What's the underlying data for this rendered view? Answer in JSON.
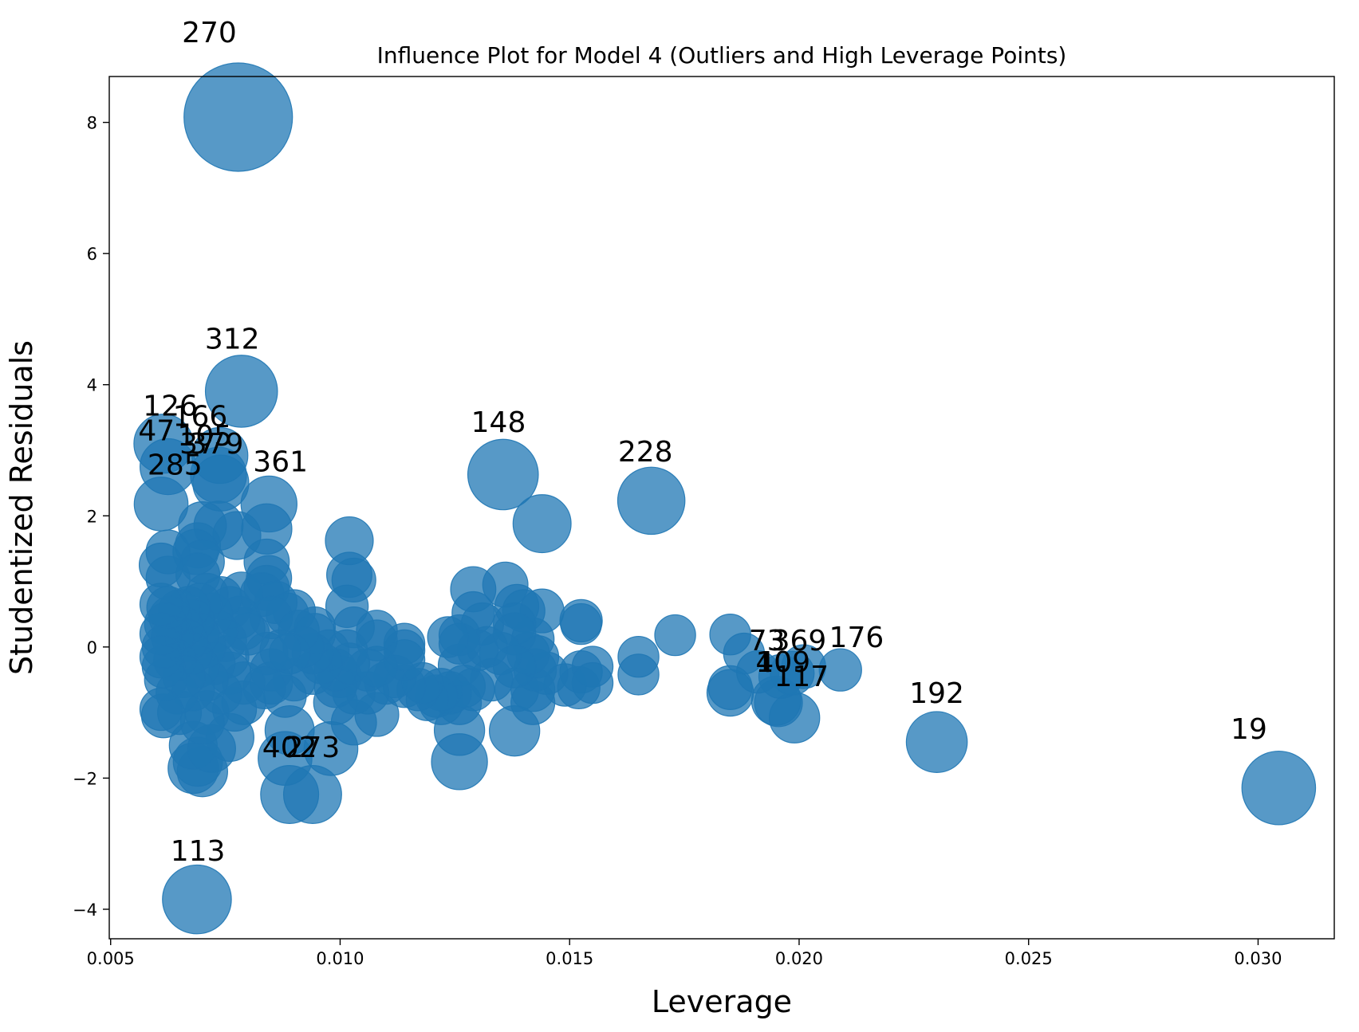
{
  "chart_data": {
    "type": "scatter",
    "title": "Influence Plot for Model 4 (Outliers and High Leverage Points)",
    "xlabel": "Leverage",
    "ylabel": "Studentized Residuals",
    "xlim": [
      0.00497,
      0.03166
    ],
    "ylim": [
      -4.45,
      8.7
    ],
    "xticks": [
      0.005,
      0.01,
      0.015,
      0.02,
      0.025,
      0.03
    ],
    "xtick_labels": [
      "0.005",
      "0.010",
      "0.015",
      "0.020",
      "0.025",
      "0.030"
    ],
    "yticks": [
      -4,
      -2,
      0,
      2,
      4,
      6,
      8
    ],
    "ytick_labels": [
      "−4",
      "−2",
      "0",
      "2",
      "4",
      "6",
      "8"
    ],
    "grid": false,
    "marker_color": "#1f77b4",
    "marker_alpha": 0.75,
    "points": [
      {
        "x": 0.00778,
        "y": 8.08,
        "s": 1.0
      },
      {
        "x": 0.00785,
        "y": 3.9,
        "s": 0.4
      },
      {
        "x": 0.00688,
        "y": -3.85,
        "s": 0.36
      },
      {
        "x": 0.03045,
        "y": -2.15,
        "s": 0.42
      },
      {
        "x": 0.01355,
        "y": 2.63,
        "s": 0.38
      },
      {
        "x": 0.01678,
        "y": 2.23,
        "s": 0.34
      },
      {
        "x": 0.023,
        "y": -1.45,
        "s": 0.27
      },
      {
        "x": 0.00615,
        "y": 3.1,
        "s": 0.25
      },
      {
        "x": 0.00625,
        "y": 2.75,
        "s": 0.22
      },
      {
        "x": 0.00738,
        "y": 2.92,
        "s": 0.22
      },
      {
        "x": 0.00735,
        "y": 2.62,
        "s": 0.22
      },
      {
        "x": 0.0074,
        "y": 2.5,
        "s": 0.22
      },
      {
        "x": 0.0061,
        "y": 2.18,
        "s": 0.2
      },
      {
        "x": 0.00845,
        "y": 2.18,
        "s": 0.22
      },
      {
        "x": 0.0144,
        "y": 1.88,
        "s": 0.24
      },
      {
        "x": 0.0089,
        "y": -2.25,
        "s": 0.24
      },
      {
        "x": 0.0094,
        "y": -2.25,
        "s": 0.24
      },
      {
        "x": 0.0088,
        "y": -1.7,
        "s": 0.2
      },
      {
        "x": 0.0098,
        "y": -1.55,
        "s": 0.2
      },
      {
        "x": 0.007,
        "y": -1.9,
        "s": 0.17
      },
      {
        "x": 0.0068,
        "y": -1.85,
        "s": 0.17
      },
      {
        "x": 0.0069,
        "y": -1.75,
        "s": 0.16
      },
      {
        "x": 0.0068,
        "y": -1.5,
        "s": 0.15
      },
      {
        "x": 0.0072,
        "y": -1.55,
        "s": 0.15
      },
      {
        "x": 0.0076,
        "y": -1.38,
        "s": 0.15
      },
      {
        "x": 0.0089,
        "y": -1.27,
        "s": 0.16
      },
      {
        "x": 0.0126,
        "y": -1.75,
        "s": 0.22
      },
      {
        "x": 0.0126,
        "y": -1.27,
        "s": 0.17
      },
      {
        "x": 0.0138,
        "y": -1.28,
        "s": 0.17
      },
      {
        "x": 0.0199,
        "y": -1.08,
        "s": 0.17
      },
      {
        "x": 0.0195,
        "y": -0.82,
        "s": 0.16
      },
      {
        "x": 0.01955,
        "y": -0.85,
        "s": 0.15
      },
      {
        "x": 0.0185,
        "y": -0.7,
        "s": 0.14
      },
      {
        "x": 0.0185,
        "y": -0.62,
        "s": 0.12
      },
      {
        "x": 0.0196,
        "y": -0.45,
        "s": 0.12
      },
      {
        "x": 0.01985,
        "y": -0.4,
        "s": 0.12
      },
      {
        "x": 0.0201,
        "y": -0.3,
        "s": 0.12
      },
      {
        "x": 0.0209,
        "y": -0.35,
        "s": 0.11
      },
      {
        "x": 0.0188,
        "y": -0.1,
        "s": 0.1
      },
      {
        "x": 0.0191,
        "y": -0.38,
        "s": 0.11
      },
      {
        "x": 0.0185,
        "y": 0.19,
        "s": 0.1
      },
      {
        "x": 0.0173,
        "y": 0.18,
        "s": 0.1
      },
      {
        "x": 0.0165,
        "y": -0.15,
        "s": 0.1
      },
      {
        "x": 0.0165,
        "y": -0.42,
        "s": 0.1
      },
      {
        "x": 0.01525,
        "y": 0.4,
        "s": 0.11
      },
      {
        "x": 0.01525,
        "y": 0.35,
        "s": 0.1
      },
      {
        "x": 0.0155,
        "y": -0.3,
        "s": 0.1
      },
      {
        "x": 0.0155,
        "y": -0.55,
        "s": 0.1
      },
      {
        "x": 0.0152,
        "y": -0.62,
        "s": 0.11
      },
      {
        "x": 0.01525,
        "y": -0.38,
        "s": 0.11
      },
      {
        "x": 0.0149,
        "y": -0.58,
        "s": 0.11
      },
      {
        "x": 0.0144,
        "y": 0.55,
        "s": 0.12
      },
      {
        "x": 0.0145,
        "y": -0.4,
        "s": 0.11
      },
      {
        "x": 0.0142,
        "y": -0.85,
        "s": 0.12
      },
      {
        "x": 0.0142,
        "y": -0.65,
        "s": 0.12
      },
      {
        "x": 0.01425,
        "y": -0.35,
        "s": 0.11
      },
      {
        "x": 0.0142,
        "y": 0.12,
        "s": 0.11
      },
      {
        "x": 0.0143,
        "y": -0.15,
        "s": 0.11
      },
      {
        "x": 0.0141,
        "y": -0.1,
        "s": 0.11
      },
      {
        "x": 0.014,
        "y": 0.55,
        "s": 0.11
      },
      {
        "x": 0.01385,
        "y": 0.62,
        "s": 0.12
      },
      {
        "x": 0.0138,
        "y": 0.35,
        "s": 0.11
      },
      {
        "x": 0.0138,
        "y": 0.2,
        "s": 0.11
      },
      {
        "x": 0.0138,
        "y": -0.3,
        "s": 0.11
      },
      {
        "x": 0.01385,
        "y": -0.65,
        "s": 0.12
      },
      {
        "x": 0.0136,
        "y": 0.95,
        "s": 0.13
      },
      {
        "x": 0.0135,
        "y": -0.1,
        "s": 0.11
      },
      {
        "x": 0.0133,
        "y": -0.5,
        "s": 0.11
      },
      {
        "x": 0.0132,
        "y": 0.0,
        "s": 0.1
      },
      {
        "x": 0.0131,
        "y": 0.35,
        "s": 0.11
      },
      {
        "x": 0.013,
        "y": -0.05,
        "s": 0.1
      },
      {
        "x": 0.0129,
        "y": 0.52,
        "s": 0.11
      },
      {
        "x": 0.0129,
        "y": 0.88,
        "s": 0.13
      },
      {
        "x": 0.0129,
        "y": -0.65,
        "s": 0.11
      },
      {
        "x": 0.0127,
        "y": -0.6,
        "s": 0.11
      },
      {
        "x": 0.0126,
        "y": 0.18,
        "s": 0.1
      },
      {
        "x": 0.0126,
        "y": -0.28,
        "s": 0.11
      },
      {
        "x": 0.0126,
        "y": -0.85,
        "s": 0.12
      },
      {
        "x": 0.0126,
        "y": 0.05,
        "s": 0.1
      },
      {
        "x": 0.0124,
        "y": -0.7,
        "s": 0.11
      },
      {
        "x": 0.01235,
        "y": 0.15,
        "s": 0.1
      },
      {
        "x": 0.0122,
        "y": -0.65,
        "s": 0.11
      },
      {
        "x": 0.0122,
        "y": -0.85,
        "s": 0.12
      },
      {
        "x": 0.0121,
        "y": -0.75,
        "s": 0.11
      },
      {
        "x": 0.0119,
        "y": -0.8,
        "s": 0.11
      },
      {
        "x": 0.0117,
        "y": -0.65,
        "s": 0.11
      },
      {
        "x": 0.0118,
        "y": -0.55,
        "s": 0.1
      },
      {
        "x": 0.0114,
        "y": -0.6,
        "s": 0.11
      },
      {
        "x": 0.0114,
        "y": -0.2,
        "s": 0.1
      },
      {
        "x": 0.0114,
        "y": 0.05,
        "s": 0.1
      },
      {
        "x": 0.0114,
        "y": -0.05,
        "s": 0.1
      },
      {
        "x": 0.0112,
        "y": -0.45,
        "s": 0.11
      },
      {
        "x": 0.011,
        "y": -0.55,
        "s": 0.11
      },
      {
        "x": 0.0108,
        "y": -1.03,
        "s": 0.12
      },
      {
        "x": 0.0108,
        "y": -0.3,
        "s": 0.1
      },
      {
        "x": 0.0108,
        "y": 0.1,
        "s": 0.1
      },
      {
        "x": 0.0108,
        "y": 0.25,
        "s": 0.1
      },
      {
        "x": 0.0106,
        "y": -0.7,
        "s": 0.11
      },
      {
        "x": 0.0106,
        "y": -0.35,
        "s": 0.11
      },
      {
        "x": 0.0103,
        "y": -1.15,
        "s": 0.13
      },
      {
        "x": 0.0103,
        "y": -0.7,
        "s": 0.11
      },
      {
        "x": 0.0103,
        "y": 0.3,
        "s": 0.1
      },
      {
        "x": 0.0103,
        "y": 1.02,
        "s": 0.12
      },
      {
        "x": 0.0102,
        "y": 1.1,
        "s": 0.13
      },
      {
        "x": 0.0102,
        "y": 1.62,
        "s": 0.15
      },
      {
        "x": 0.01015,
        "y": 0.62,
        "s": 0.11
      },
      {
        "x": 0.01015,
        "y": -0.05,
        "s": 0.1
      },
      {
        "x": 0.0102,
        "y": -0.25,
        "s": 0.1
      },
      {
        "x": 0.01,
        "y": -0.45,
        "s": 0.11
      },
      {
        "x": 0.0099,
        "y": -0.6,
        "s": 0.11
      },
      {
        "x": 0.0099,
        "y": -0.35,
        "s": 0.11
      },
      {
        "x": 0.0099,
        "y": -0.85,
        "s": 0.12
      },
      {
        "x": 0.00975,
        "y": -0.05,
        "s": 0.1
      },
      {
        "x": 0.0096,
        "y": -0.25,
        "s": 0.1
      },
      {
        "x": 0.00945,
        "y": 0.3,
        "s": 0.1
      },
      {
        "x": 0.00945,
        "y": 0.2,
        "s": 0.1
      },
      {
        "x": 0.0094,
        "y": -0.4,
        "s": 0.11
      },
      {
        "x": 0.0094,
        "y": -0.1,
        "s": 0.1
      },
      {
        "x": 0.0092,
        "y": 0.0,
        "s": 0.1
      },
      {
        "x": 0.0091,
        "y": 0.25,
        "s": 0.1
      },
      {
        "x": 0.009,
        "y": 0.55,
        "s": 0.11
      },
      {
        "x": 0.009,
        "y": -0.5,
        "s": 0.11
      },
      {
        "x": 0.0089,
        "y": -0.1,
        "s": 0.1
      },
      {
        "x": 0.00885,
        "y": 0.5,
        "s": 0.11
      },
      {
        "x": 0.0088,
        "y": -0.75,
        "s": 0.11
      },
      {
        "x": 0.0087,
        "y": -0.05,
        "s": 0.1
      },
      {
        "x": 0.0086,
        "y": 0.68,
        "s": 0.11
      },
      {
        "x": 0.0085,
        "y": 0.45,
        "s": 0.11
      },
      {
        "x": 0.0085,
        "y": -0.35,
        "s": 0.11
      },
      {
        "x": 0.0085,
        "y": -0.55,
        "s": 0.11
      },
      {
        "x": 0.00845,
        "y": 1.05,
        "s": 0.13
      },
      {
        "x": 0.0084,
        "y": 1.3,
        "s": 0.13
      },
      {
        "x": 0.0084,
        "y": 0.9,
        "s": 0.13
      },
      {
        "x": 0.0084,
        "y": 1.8,
        "s": 0.17
      },
      {
        "x": 0.0084,
        "y": -0.1,
        "s": 0.11
      },
      {
        "x": 0.00835,
        "y": -0.62,
        "s": 0.11
      },
      {
        "x": 0.0083,
        "y": 0.8,
        "s": 0.12
      },
      {
        "x": 0.008,
        "y": 0.2,
        "s": 0.11
      },
      {
        "x": 0.0079,
        "y": 0.28,
        "s": 0.11
      },
      {
        "x": 0.0079,
        "y": -0.55,
        "s": 0.11
      },
      {
        "x": 0.0079,
        "y": -0.85,
        "s": 0.12
      },
      {
        "x": 0.00785,
        "y": 0.82,
        "s": 0.11
      },
      {
        "x": 0.0078,
        "y": 0.45,
        "s": 0.11
      },
      {
        "x": 0.00775,
        "y": 1.7,
        "s": 0.15
      },
      {
        "x": 0.0077,
        "y": -0.95,
        "s": 0.12
      },
      {
        "x": 0.0076,
        "y": 0.6,
        "s": 0.11
      },
      {
        "x": 0.0076,
        "y": -0.4,
        "s": 0.11
      },
      {
        "x": 0.00755,
        "y": -0.15,
        "s": 0.11
      },
      {
        "x": 0.0075,
        "y": 0.1,
        "s": 0.11
      },
      {
        "x": 0.0074,
        "y": 0.75,
        "s": 0.11
      },
      {
        "x": 0.0074,
        "y": -0.7,
        "s": 0.11
      },
      {
        "x": 0.00735,
        "y": 1.85,
        "s": 0.16
      },
      {
        "x": 0.0073,
        "y": 0.25,
        "s": 0.11
      },
      {
        "x": 0.00725,
        "y": -0.25,
        "s": 0.11
      },
      {
        "x": 0.0072,
        "y": 0.5,
        "s": 0.11
      },
      {
        "x": 0.0071,
        "y": 0.8,
        "s": 0.11
      },
      {
        "x": 0.0071,
        "y": -1.0,
        "s": 0.12
      },
      {
        "x": 0.0071,
        "y": -0.5,
        "s": 0.11
      },
      {
        "x": 0.00705,
        "y": 0.0,
        "s": 0.11
      },
      {
        "x": 0.007,
        "y": 1.85,
        "s": 0.15
      },
      {
        "x": 0.007,
        "y": -1.15,
        "s": 0.12
      },
      {
        "x": 0.007,
        "y": 1.3,
        "s": 0.12
      },
      {
        "x": 0.00695,
        "y": 0.65,
        "s": 0.11
      },
      {
        "x": 0.0069,
        "y": 1.55,
        "s": 0.13
      },
      {
        "x": 0.0069,
        "y": 1.1,
        "s": 0.12
      },
      {
        "x": 0.0069,
        "y": -0.3,
        "s": 0.11
      },
      {
        "x": 0.0069,
        "y": 0.2,
        "s": 0.11
      },
      {
        "x": 0.00685,
        "y": 1.45,
        "s": 0.13
      },
      {
        "x": 0.0068,
        "y": 0.4,
        "s": 0.11
      },
      {
        "x": 0.0068,
        "y": -0.65,
        "s": 0.11
      },
      {
        "x": 0.00675,
        "y": -0.1,
        "s": 0.11
      },
      {
        "x": 0.0067,
        "y": 0.6,
        "s": 0.11
      },
      {
        "x": 0.00665,
        "y": 0.1,
        "s": 0.11
      },
      {
        "x": 0.0066,
        "y": -0.45,
        "s": 0.11
      },
      {
        "x": 0.00655,
        "y": 0.3,
        "s": 0.11
      },
      {
        "x": 0.0065,
        "y": -1.0,
        "s": 0.12
      },
      {
        "x": 0.0065,
        "y": 0.55,
        "s": 0.11
      },
      {
        "x": 0.00645,
        "y": -0.7,
        "s": 0.11
      },
      {
        "x": 0.0064,
        "y": -0.2,
        "s": 0.11
      },
      {
        "x": 0.00635,
        "y": 0.15,
        "s": 0.11
      },
      {
        "x": 0.0063,
        "y": 0.45,
        "s": 0.11
      },
      {
        "x": 0.00625,
        "y": 1.05,
        "s": 0.12
      },
      {
        "x": 0.00625,
        "y": 1.45,
        "s": 0.12
      },
      {
        "x": 0.00625,
        "y": 0.6,
        "s": 0.11
      },
      {
        "x": 0.0062,
        "y": 0.35,
        "s": 0.11
      },
      {
        "x": 0.0062,
        "y": -0.5,
        "s": 0.11
      },
      {
        "x": 0.00615,
        "y": -1.05,
        "s": 0.12
      },
      {
        "x": 0.00615,
        "y": -0.3,
        "s": 0.11
      },
      {
        "x": 0.00615,
        "y": 0.0,
        "s": 0.11
      },
      {
        "x": 0.0061,
        "y": 1.25,
        "s": 0.12
      },
      {
        "x": 0.0061,
        "y": -0.95,
        "s": 0.11
      },
      {
        "x": 0.0061,
        "y": 0.2,
        "s": 0.11
      },
      {
        "x": 0.0061,
        "y": -0.15,
        "s": 0.11
      },
      {
        "x": 0.0061,
        "y": 0.65,
        "s": 0.11
      }
    ],
    "annotations": [
      {
        "label": "270",
        "x": 0.00715,
        "y": 9.22
      },
      {
        "label": "312",
        "x": 0.00765,
        "y": 4.55
      },
      {
        "label": "126",
        "x": 0.0063,
        "y": 3.53
      },
      {
        "label": "166",
        "x": 0.00695,
        "y": 3.37
      },
      {
        "label": "47",
        "x": 0.006,
        "y": 3.15
      },
      {
        "label": "105",
        "x": 0.00705,
        "y": 3.07
      },
      {
        "label": "37",
        "x": 0.0069,
        "y": 2.95
      },
      {
        "label": "379",
        "x": 0.0073,
        "y": 2.95
      },
      {
        "label": "285",
        "x": 0.0064,
        "y": 2.63
      },
      {
        "label": "361",
        "x": 0.0087,
        "y": 2.68
      },
      {
        "label": "148",
        "x": 0.01345,
        "y": 3.28
      },
      {
        "label": "228",
        "x": 0.01665,
        "y": 2.83
      },
      {
        "label": "73",
        "x": 0.0193,
        "y": -0.05
      },
      {
        "label": "369",
        "x": 0.02,
        "y": -0.05
      },
      {
        "label": "176",
        "x": 0.02125,
        "y": 0.0
      },
      {
        "label": "40",
        "x": 0.01945,
        "y": -0.38
      },
      {
        "label": "109",
        "x": 0.01965,
        "y": -0.38
      },
      {
        "label": "117",
        "x": 0.02005,
        "y": -0.6
      },
      {
        "label": "192",
        "x": 0.023,
        "y": -0.85
      },
      {
        "label": "19",
        "x": 0.0298,
        "y": -1.4
      },
      {
        "label": "402",
        "x": 0.0089,
        "y": -1.68
      },
      {
        "label": "273",
        "x": 0.0094,
        "y": -1.68
      },
      {
        "label": "113",
        "x": 0.0069,
        "y": -3.26
      }
    ]
  }
}
